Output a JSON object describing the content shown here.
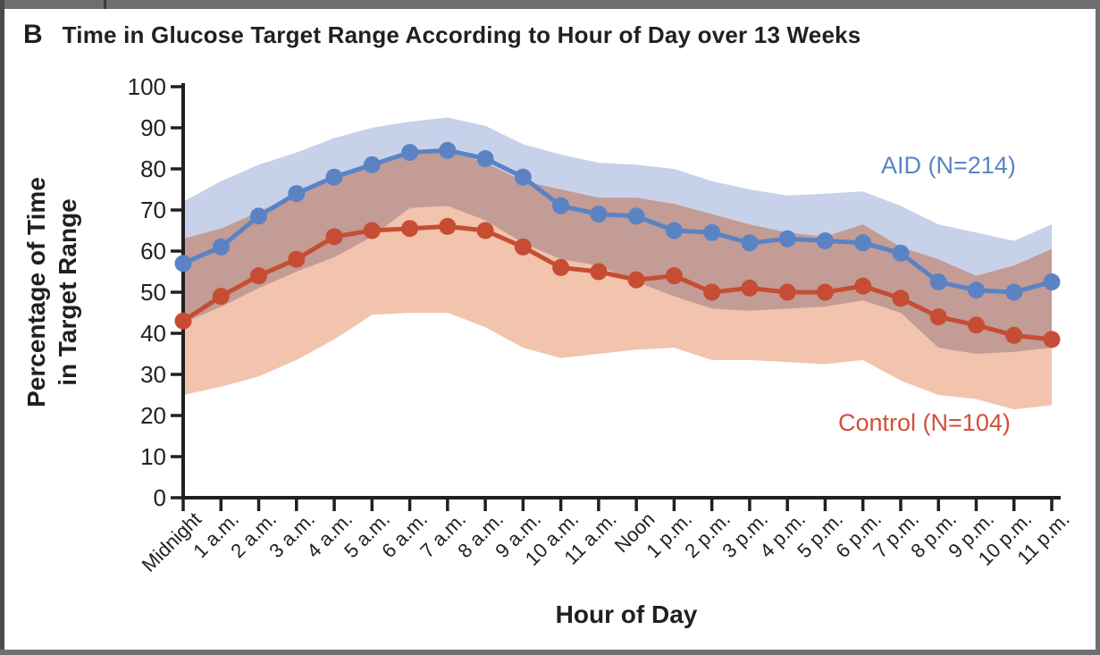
{
  "panel": {
    "letter": "B",
    "title": "Time in Glucose Target Range According to Hour of Day over 13 Weeks"
  },
  "chart_data": {
    "type": "line",
    "title": "Time in Glucose Target Range According to Hour of Day over 13 Weeks",
    "xlabel": "Hour of Day",
    "ylabel": "Percentage of Time in Target Range",
    "ylabel_lines": [
      "Percentage of Time",
      "in Target Range"
    ],
    "ylim": [
      0,
      100
    ],
    "y_ticks": [
      0,
      10,
      20,
      30,
      40,
      50,
      60,
      70,
      80,
      90,
      100
    ],
    "grid": "off",
    "legend_position": "inline-right",
    "x_categories": [
      "Midnight",
      "1 a.m.",
      "2 a.m.",
      "3 a.m.",
      "4 a.m.",
      "5 a.m.",
      "6 a.m.",
      "7 a.m.",
      "8 a.m.",
      "9 a.m.",
      "10 a.m.",
      "11 a.m.",
      "Noon",
      "1 p.m.",
      "2 p.m.",
      "3 p.m.",
      "4 p.m.",
      "5 p.m.",
      "6 p.m.",
      "7 p.m.",
      "8 p.m.",
      "9 p.m.",
      "10 p.m.",
      "11 p.m."
    ],
    "overlap_color": "#c29c95",
    "axis_color": "#231f20",
    "series": [
      {
        "name": "AID (N=214)",
        "color": "#5b83c4",
        "band_color": "#c7d1e9",
        "values": [
          57,
          61,
          68.5,
          74,
          78,
          81,
          84,
          84.5,
          82.5,
          78,
          71,
          69,
          68.5,
          65,
          64.5,
          62,
          63,
          62.5,
          62,
          59.5,
          52.5,
          50.5,
          50,
          52.5
        ],
        "band_upper": [
          72,
          77,
          81,
          84,
          87.5,
          90,
          91.5,
          92.5,
          90.5,
          86,
          83.5,
          81.5,
          81,
          80,
          77,
          75,
          73.5,
          74,
          74.5,
          71,
          66.5,
          64.5,
          62.5,
          66.5
        ],
        "band_lower": [
          42.5,
          46.5,
          51,
          55,
          58.5,
          63.5,
          70.5,
          71,
          67.5,
          62,
          58,
          56.5,
          52.5,
          49,
          46,
          45.5,
          46,
          46.5,
          48,
          45,
          36.5,
          35,
          35.5,
          36.5
        ]
      },
      {
        "name": "Control (N=104)",
        "color": "#c64d33",
        "band_color": "#f2c3ad",
        "values": [
          43,
          49,
          54,
          58,
          63.5,
          65,
          65.5,
          66,
          65,
          61,
          56,
          55,
          53,
          54,
          50,
          51,
          50,
          50,
          51.5,
          48.5,
          44,
          42,
          39.5,
          38.5
        ],
        "band_upper": [
          63,
          65.5,
          69.5,
          74,
          78,
          81,
          83.5,
          84.5,
          81.5,
          77,
          75,
          73,
          73,
          71.5,
          69,
          66.5,
          64.5,
          63.5,
          66.5,
          61,
          58,
          54,
          56.5,
          60.5
        ],
        "band_lower": [
          25,
          27,
          29.5,
          33.5,
          38.5,
          44.5,
          45,
          45,
          41.5,
          36.5,
          34,
          35,
          36,
          36.5,
          33.5,
          33.5,
          33,
          32.5,
          33.5,
          28.5,
          25,
          24,
          21.5,
          22.5
        ]
      }
    ]
  }
}
